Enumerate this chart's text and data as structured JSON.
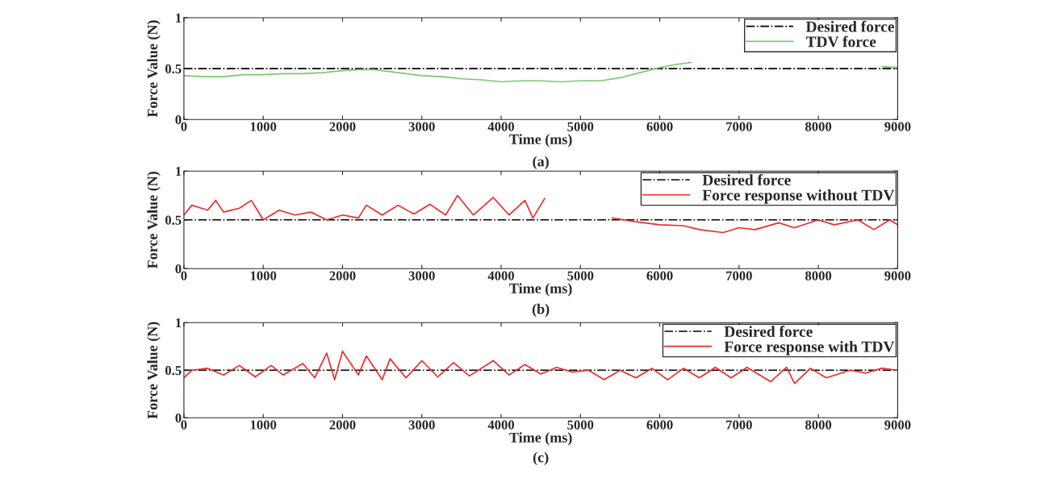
{
  "chart_data": [
    {
      "type": "line",
      "xlabel": "Time (ms)",
      "ylabel": "Force Value (N)",
      "xlim": [
        0,
        9000
      ],
      "ylim": [
        0,
        1
      ],
      "xticks": [
        0,
        1000,
        2000,
        3000,
        4000,
        5000,
        6000,
        7000,
        8000,
        9000
      ],
      "yticks": [
        0,
        0.5,
        1
      ],
      "grid": false,
      "legend": "top right",
      "annotations": [
        "(a)"
      ],
      "series": [
        {
          "name": "Desired force",
          "color": "#000000",
          "line_style": "dashdot",
          "x": [
            0,
            9000
          ],
          "values": [
            0.5,
            0.5
          ]
        },
        {
          "name": "TDV force",
          "color": "#7cc576",
          "line_style": "solid",
          "x": [
            0,
            250,
            500,
            750,
            1000,
            1250,
            1500,
            1750,
            2000,
            2200,
            2400,
            2600,
            2800,
            3000,
            3250,
            3500,
            3750,
            4000,
            4250,
            4500,
            4750,
            5000,
            5250,
            5500,
            5750,
            6000,
            6200,
            6400,
            6600,
            8700,
            8800,
            9000
          ],
          "values": [
            0.43,
            0.42,
            0.42,
            0.44,
            0.44,
            0.45,
            0.45,
            0.46,
            0.48,
            0.49,
            0.49,
            0.47,
            0.45,
            0.43,
            0.42,
            0.4,
            0.39,
            0.37,
            0.38,
            0.38,
            0.37,
            0.38,
            0.38,
            0.41,
            0.46,
            0.51,
            0.54,
            0.56,
            null,
            null,
            0.52,
            0.51
          ]
        }
      ]
    },
    {
      "type": "line",
      "xlabel": "Time (ms)",
      "ylabel": "Force Value (N)",
      "xlim": [
        0,
        9000
      ],
      "ylim": [
        0,
        1
      ],
      "xticks": [
        0,
        1000,
        2000,
        3000,
        4000,
        5000,
        6000,
        7000,
        8000,
        9000
      ],
      "yticks": [
        0,
        0.5,
        1
      ],
      "grid": false,
      "legend": "top right",
      "annotations": [
        "(b)"
      ],
      "series": [
        {
          "name": "Desired force",
          "color": "#000000",
          "line_style": "dashdot",
          "x": [
            0,
            9000
          ],
          "values": [
            0.5,
            0.5
          ]
        },
        {
          "name": "Force response without TDV",
          "color": "#ee2a2a",
          "line_style": "solid",
          "x": [
            0,
            100,
            300,
            400,
            500,
            700,
            850,
            1000,
            1200,
            1400,
            1600,
            1800,
            2000,
            2200,
            2300,
            2500,
            2700,
            2900,
            3100,
            3300,
            3450,
            3650,
            3900,
            4100,
            4300,
            4400,
            4550,
            4700,
            5300,
            5400,
            5700,
            6000,
            6300,
            6500,
            6800,
            7000,
            7200,
            7500,
            7700,
            8000,
            8200,
            8500,
            8700,
            8900,
            9000
          ],
          "values": [
            0.55,
            0.65,
            0.6,
            0.7,
            0.58,
            0.62,
            0.7,
            0.5,
            0.6,
            0.55,
            0.58,
            0.5,
            0.55,
            0.52,
            0.65,
            0.55,
            0.65,
            0.56,
            0.66,
            0.55,
            0.75,
            0.55,
            0.73,
            0.55,
            0.7,
            0.52,
            0.72,
            null,
            null,
            0.52,
            0.48,
            0.45,
            0.44,
            0.4,
            0.37,
            0.42,
            0.4,
            0.47,
            0.42,
            0.5,
            0.45,
            0.5,
            0.4,
            0.5,
            0.45
          ]
        }
      ]
    },
    {
      "type": "line",
      "xlabel": "Time (ms)",
      "ylabel": "Force Value (N)",
      "xlim": [
        0,
        9000
      ],
      "ylim": [
        0,
        1
      ],
      "xticks": [
        0,
        1000,
        2000,
        3000,
        4000,
        5000,
        6000,
        7000,
        8000,
        9000
      ],
      "yticks": [
        0,
        0.5,
        1
      ],
      "grid": false,
      "legend": "top right",
      "annotations": [
        "(c)"
      ],
      "series": [
        {
          "name": "Desired force",
          "color": "#000000",
          "line_style": "dashdot",
          "x": [
            0,
            9000
          ],
          "values": [
            0.5,
            0.5
          ]
        },
        {
          "name": "Force response with TDV",
          "color": "#ee2a2a",
          "line_style": "solid",
          "x": [
            0,
            100,
            300,
            500,
            700,
            900,
            1100,
            1250,
            1500,
            1650,
            1800,
            1900,
            2000,
            2200,
            2300,
            2500,
            2600,
            2800,
            3000,
            3200,
            3400,
            3600,
            3900,
            4100,
            4300,
            4500,
            4700,
            4900,
            5100,
            5300,
            5500,
            5700,
            5900,
            6100,
            6300,
            6500,
            6700,
            6900,
            7100,
            7400,
            7600,
            7700,
            7900,
            8100,
            8400,
            8600,
            8800,
            9000
          ],
          "values": [
            0.42,
            0.5,
            0.52,
            0.45,
            0.55,
            0.43,
            0.55,
            0.45,
            0.57,
            0.42,
            0.68,
            0.4,
            0.7,
            0.45,
            0.65,
            0.4,
            0.62,
            0.42,
            0.6,
            0.43,
            0.58,
            0.44,
            0.6,
            0.45,
            0.56,
            0.46,
            0.53,
            0.48,
            0.5,
            0.4,
            0.5,
            0.42,
            0.52,
            0.4,
            0.52,
            0.42,
            0.53,
            0.42,
            0.53,
            0.38,
            0.53,
            0.36,
            0.52,
            0.42,
            0.5,
            0.47,
            0.52,
            0.5
          ]
        }
      ]
    }
  ]
}
